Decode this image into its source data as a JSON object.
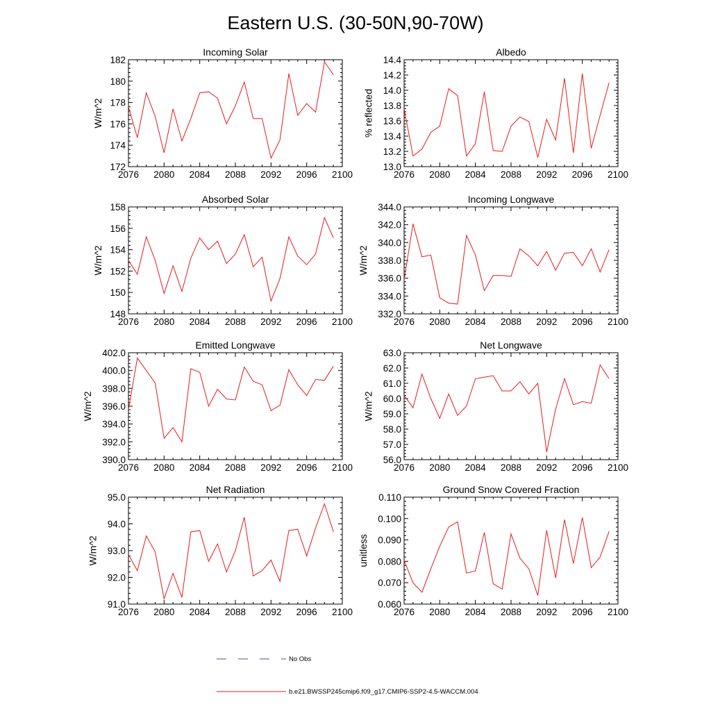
{
  "figure": {
    "title": "Eastern U.S. (30-50N,90-70W)"
  },
  "legend": {
    "entries": [
      {
        "label": "No Obs",
        "color": "#4a4aa8",
        "style": "dashed"
      },
      {
        "label": "b.e21.BWSSP245cmip6.f09_g17.CMIP6-SSP2-4.5-WACCM.004",
        "color": "#e8191b",
        "style": "solid"
      }
    ]
  },
  "chart_data": [
    {
      "type": "line",
      "title": "Incoming Solar",
      "xlabel": "",
      "ylabel": "W/m^2",
      "xlim": [
        2076,
        2100
      ],
      "ylim": [
        172,
        182
      ],
      "xticks": [
        "2076",
        "2080",
        "2084",
        "2088",
        "2092",
        "2096",
        "2100"
      ],
      "yticks": [
        "172",
        "174",
        "176",
        "178",
        "180",
        "182"
      ],
      "series": [
        {
          "color": "#e8191b",
          "x": [
            2076,
            2077,
            2078,
            2079,
            2080,
            2081,
            2082,
            2083,
            2084,
            2085,
            2086,
            2087,
            2088,
            2089,
            2090,
            2091,
            2092,
            2093,
            2094,
            2095,
            2096,
            2097,
            2098,
            2099
          ],
          "y": [
            177.6,
            174.7,
            178.9,
            176.7,
            173.3,
            177.4,
            174.4,
            176.5,
            178.9,
            179.0,
            178.4,
            176.0,
            177.7,
            179.9,
            176.5,
            176.5,
            172.8,
            174.5,
            180.7,
            176.8,
            177.9,
            177.1,
            181.8,
            180.6
          ]
        }
      ]
    },
    {
      "type": "line",
      "title": "Albedo",
      "xlabel": "",
      "ylabel": "% reflected",
      "xlim": [
        2076,
        2100
      ],
      "ylim": [
        13.0,
        14.4
      ],
      "xticks": [
        "2076",
        "2080",
        "2084",
        "2088",
        "2092",
        "2096",
        "2100"
      ],
      "yticks": [
        "13.0",
        "13.2",
        "13.4",
        "13.6",
        "13.8",
        "14.0",
        "14.2",
        "14.4"
      ],
      "series": [
        {
          "color": "#e8191b",
          "x": [
            2076,
            2077,
            2078,
            2079,
            2080,
            2081,
            2082,
            2083,
            2084,
            2085,
            2086,
            2087,
            2088,
            2089,
            2090,
            2091,
            2092,
            2093,
            2094,
            2095,
            2096,
            2097,
            2098,
            2099
          ],
          "y": [
            13.76,
            13.14,
            13.23,
            13.45,
            13.53,
            14.02,
            13.93,
            13.14,
            13.3,
            13.98,
            13.21,
            13.2,
            13.53,
            13.65,
            13.59,
            13.12,
            13.62,
            13.35,
            14.16,
            13.18,
            14.22,
            13.24,
            13.67,
            14.1
          ]
        }
      ]
    },
    {
      "type": "line",
      "title": "Absorbed Solar",
      "xlabel": "",
      "ylabel": "W/m^2",
      "xlim": [
        2076,
        2100
      ],
      "ylim": [
        148,
        158
      ],
      "xticks": [
        "2076",
        "2080",
        "2084",
        "2088",
        "2092",
        "2096",
        "2100"
      ],
      "yticks": [
        "148",
        "150",
        "152",
        "154",
        "156",
        "158"
      ],
      "series": [
        {
          "color": "#e8191b",
          "x": [
            2076,
            2077,
            2078,
            2079,
            2080,
            2081,
            2082,
            2083,
            2084,
            2085,
            2086,
            2087,
            2088,
            2089,
            2090,
            2091,
            2092,
            2093,
            2094,
            2095,
            2096,
            2097,
            2098,
            2099
          ],
          "y": [
            153.0,
            151.7,
            155.2,
            153.0,
            149.9,
            152.5,
            150.1,
            153.2,
            155.1,
            154.0,
            154.8,
            152.7,
            153.6,
            155.4,
            152.4,
            153.3,
            149.2,
            151.3,
            155.2,
            153.4,
            152.6,
            153.6,
            157.0,
            155.1
          ]
        }
      ]
    },
    {
      "type": "line",
      "title": "Incoming Longwave",
      "xlabel": "",
      "ylabel": "W/m^2",
      "xlim": [
        2076,
        2100
      ],
      "ylim": [
        332.0,
        344.0
      ],
      "xticks": [
        "2076",
        "2080",
        "2084",
        "2088",
        "2092",
        "2096",
        "2100"
      ],
      "yticks": [
        "332.0",
        "334.0",
        "336.0",
        "338.0",
        "340.0",
        "342.0",
        "344.0"
      ],
      "series": [
        {
          "color": "#e8191b",
          "x": [
            2076,
            2077,
            2078,
            2079,
            2080,
            2081,
            2082,
            2083,
            2084,
            2085,
            2086,
            2087,
            2088,
            2089,
            2090,
            2091,
            2092,
            2093,
            2094,
            2095,
            2096,
            2097,
            2098,
            2099
          ],
          "y": [
            335.8,
            342.1,
            338.4,
            338.6,
            333.8,
            333.2,
            333.1,
            340.8,
            338.6,
            334.6,
            336.3,
            336.3,
            336.2,
            339.3,
            338.5,
            337.4,
            339.0,
            336.9,
            338.8,
            338.9,
            337.4,
            339.3,
            336.7,
            339.2
          ]
        }
      ]
    },
    {
      "type": "line",
      "title": "Emitted Longwave",
      "xlabel": "",
      "ylabel": "W/m^2",
      "xlim": [
        2076,
        2100
      ],
      "ylim": [
        390.0,
        402.0
      ],
      "xticks": [
        "2076",
        "2080",
        "2084",
        "2088",
        "2092",
        "2096",
        "2100"
      ],
      "yticks": [
        "390.0",
        "392.0",
        "394.0",
        "396.0",
        "398.0",
        "400.0",
        "402.0"
      ],
      "series": [
        {
          "color": "#e8191b",
          "x": [
            2076,
            2077,
            2078,
            2079,
            2080,
            2081,
            2082,
            2083,
            2084,
            2085,
            2086,
            2087,
            2088,
            2089,
            2090,
            2091,
            2092,
            2093,
            2094,
            2095,
            2096,
            2097,
            2098,
            2099
          ],
          "y": [
            395.6,
            401.4,
            400.0,
            398.6,
            392.4,
            393.6,
            392.0,
            400.2,
            399.8,
            396.0,
            397.9,
            396.8,
            396.7,
            400.4,
            398.8,
            398.4,
            395.5,
            396.1,
            400.1,
            398.4,
            397.2,
            399.0,
            398.9,
            400.5
          ]
        }
      ]
    },
    {
      "type": "line",
      "title": "Net Longwave",
      "xlabel": "",
      "ylabel": "W/m^2",
      "xlim": [
        2076,
        2100
      ],
      "ylim": [
        56.0,
        63.0
      ],
      "xticks": [
        "2076",
        "2080",
        "2084",
        "2088",
        "2092",
        "2096",
        "2100"
      ],
      "yticks": [
        "56.0",
        "57.0",
        "58.0",
        "59.0",
        "60.0",
        "61.0",
        "62.0",
        "63.0"
      ],
      "series": [
        {
          "color": "#e8191b",
          "x": [
            2076,
            2077,
            2078,
            2079,
            2080,
            2081,
            2082,
            2083,
            2084,
            2085,
            2086,
            2087,
            2088,
            2089,
            2090,
            2091,
            2092,
            2093,
            2094,
            2095,
            2096,
            2097,
            2098,
            2099
          ],
          "y": [
            60.2,
            59.4,
            61.6,
            60.0,
            58.7,
            60.3,
            58.9,
            59.5,
            61.3,
            61.4,
            61.5,
            60.5,
            60.5,
            61.1,
            60.3,
            61.0,
            56.5,
            59.3,
            61.3,
            59.6,
            59.8,
            59.7,
            62.2,
            61.3
          ]
        }
      ]
    },
    {
      "type": "line",
      "title": "Net Radiation",
      "xlabel": "",
      "ylabel": "W/m^2",
      "xlim": [
        2076,
        2100
      ],
      "ylim": [
        91.0,
        95.0
      ],
      "xticks": [
        "2076",
        "2080",
        "2084",
        "2088",
        "2092",
        "2096",
        "2100"
      ],
      "yticks": [
        "91.0",
        "92.0",
        "93.0",
        "94.0",
        "95.0"
      ],
      "series": [
        {
          "color": "#e8191b",
          "x": [
            2076,
            2077,
            2078,
            2079,
            2080,
            2081,
            2082,
            2083,
            2084,
            2085,
            2086,
            2087,
            2088,
            2089,
            2090,
            2091,
            2092,
            2093,
            2094,
            2095,
            2096,
            2097,
            2098,
            2099
          ],
          "y": [
            92.85,
            92.25,
            93.55,
            92.95,
            91.2,
            92.15,
            91.25,
            93.7,
            93.75,
            92.6,
            93.25,
            92.2,
            93.0,
            94.25,
            92.05,
            92.25,
            92.65,
            91.85,
            93.75,
            93.8,
            92.8,
            93.85,
            94.75,
            93.7
          ]
        }
      ]
    },
    {
      "type": "line",
      "title": "Ground Snow Covered Fraction",
      "xlabel": "",
      "ylabel": "unitless",
      "xlim": [
        2076,
        2100
      ],
      "ylim": [
        0.06,
        0.11
      ],
      "xticks": [
        "2076",
        "2080",
        "2084",
        "2088",
        "2092",
        "2096",
        "2100"
      ],
      "yticks": [
        "0.060",
        "0.070",
        "0.080",
        "0.090",
        "0.100",
        "0.110"
      ],
      "series": [
        {
          "color": "#e8191b",
          "x": [
            2076,
            2077,
            2078,
            2079,
            2080,
            2081,
            2082,
            2083,
            2084,
            2085,
            2086,
            2087,
            2088,
            2089,
            2090,
            2091,
            2092,
            2093,
            2094,
            2095,
            2096,
            2097,
            2098,
            2099
          ],
          "y": [
            0.0805,
            0.07,
            0.0655,
            0.0765,
            0.087,
            0.096,
            0.0985,
            0.0745,
            0.0755,
            0.0935,
            0.0695,
            0.067,
            0.0928,
            0.0815,
            0.0765,
            0.064,
            0.0945,
            0.0722,
            0.0995,
            0.079,
            0.1005,
            0.077,
            0.082,
            0.094
          ]
        }
      ]
    }
  ]
}
